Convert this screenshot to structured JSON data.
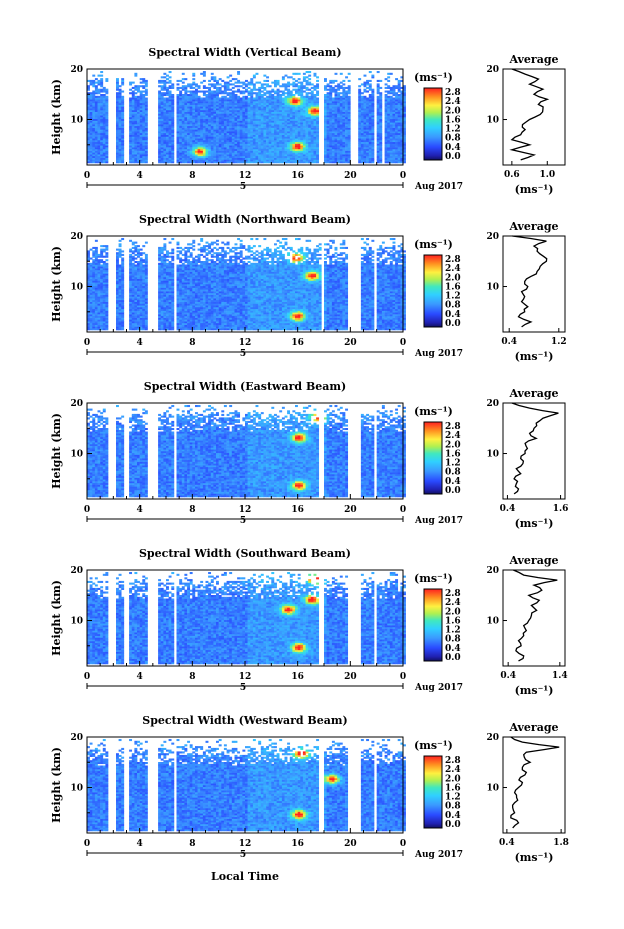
{
  "figure": {
    "xlabel": "Local Time",
    "ylabel": "Height (km)",
    "date_label": "Aug 2017",
    "day_label": "5",
    "avg_title": "Average",
    "cbar_unit": "(ms⁻¹)",
    "avg_unit": "(ms⁻¹)"
  },
  "chart_data": [
    {
      "type": "heatmap",
      "title": "Spectral Width (Vertical Beam)",
      "x_ticks": [
        "0",
        "4",
        "8",
        "12",
        "16",
        "20",
        "0"
      ],
      "y_ticks": [
        "20",
        "10"
      ],
      "xlim": [
        0,
        24
      ],
      "ylim": [
        1,
        20
      ],
      "colorbar_ticks": [
        "2.8",
        "2.4",
        "2.0",
        "1.6",
        "1.2",
        "0.8",
        "0.4",
        "0.0"
      ],
      "avg_xticks": [
        "0.6",
        "1.0"
      ],
      "avg_xlim": [
        0.5,
        1.2
      ],
      "data_gaps_hours": [
        [
          1.6,
          2.3
        ],
        [
          2.9,
          3.2
        ],
        [
          4.6,
          5.4
        ],
        [
          6.7,
          6.8
        ],
        [
          17.5,
          17.9
        ],
        [
          20.0,
          20.6
        ],
        [
          21.7,
          21.9
        ],
        [
          22.3,
          22.5
        ]
      ],
      "hotspots": [
        {
          "t": 15.9,
          "h": 4.5
        },
        {
          "t": 15.7,
          "h": 13.5
        },
        {
          "t": 17.2,
          "h": 11.5
        },
        {
          "t": 8.5,
          "h": 3.5
        }
      ],
      "avg_profile": {
        "h": [
          2,
          3,
          4,
          5,
          6,
          7,
          8,
          9,
          10,
          11,
          12,
          13,
          14,
          15,
          16,
          17,
          18,
          19,
          20
        ],
        "v": [
          0.7,
          0.85,
          0.6,
          0.8,
          0.6,
          0.7,
          0.75,
          0.72,
          0.8,
          0.92,
          0.95,
          0.9,
          1.0,
          0.85,
          0.95,
          0.8,
          0.9,
          0.75,
          0.6
        ]
      }
    },
    {
      "type": "heatmap",
      "title": "Spectral Width (Northward Beam)",
      "x_ticks": [
        "0",
        "4",
        "8",
        "12",
        "16",
        "20",
        "0"
      ],
      "y_ticks": [
        "20",
        "10"
      ],
      "xlim": [
        0,
        24
      ],
      "ylim": [
        1,
        20
      ],
      "colorbar_ticks": [
        "2.8",
        "2.4",
        "2.0",
        "1.6",
        "1.2",
        "0.8",
        "0.4",
        "0.0"
      ],
      "avg_xticks": [
        "0.4",
        "1.2"
      ],
      "avg_xlim": [
        0.3,
        1.3
      ],
      "data_gaps_hours": [
        [
          1.6,
          2.3
        ],
        [
          2.8,
          3.2
        ],
        [
          4.6,
          5.4
        ],
        [
          6.6,
          6.8
        ],
        [
          17.8,
          18.0
        ],
        [
          19.8,
          20.7
        ],
        [
          21.7,
          21.9
        ]
      ],
      "hotspots": [
        {
          "t": 15.9,
          "h": 4.0
        },
        {
          "t": 15.8,
          "h": 15.5
        },
        {
          "t": 17.0,
          "h": 12.0
        }
      ],
      "avg_profile": {
        "h": [
          2,
          3,
          4,
          5,
          6,
          7,
          8,
          9,
          10,
          11,
          12,
          13,
          14,
          15,
          16,
          17,
          18,
          19,
          20
        ],
        "v": [
          0.6,
          0.75,
          0.55,
          0.65,
          0.7,
          0.6,
          0.65,
          0.6,
          0.7,
          0.65,
          0.75,
          0.85,
          0.9,
          1.0,
          0.95,
          0.85,
          0.8,
          1.0,
          0.45
        ]
      }
    },
    {
      "type": "heatmap",
      "title": "Spectral Width (Eastward Beam)",
      "x_ticks": [
        "0",
        "4",
        "8",
        "12",
        "16",
        "20",
        "0"
      ],
      "y_ticks": [
        "20",
        "10"
      ],
      "xlim": [
        0,
        24
      ],
      "ylim": [
        1,
        20
      ],
      "colorbar_ticks": [
        "2.8",
        "2.4",
        "2.0",
        "1.6",
        "1.2",
        "0.8",
        "0.4",
        "0.0"
      ],
      "avg_xticks": [
        "0.4",
        "1.6"
      ],
      "avg_xlim": [
        0.3,
        1.7
      ],
      "data_gaps_hours": [
        [
          1.6,
          2.3
        ],
        [
          2.8,
          3.2
        ],
        [
          4.6,
          5.4
        ],
        [
          6.6,
          6.8
        ],
        [
          17.6,
          18.0
        ],
        [
          19.8,
          20.7
        ],
        [
          21.7,
          22.0
        ]
      ],
      "hotspots": [
        {
          "t": 16.0,
          "h": 3.5
        },
        {
          "t": 16.0,
          "h": 13.0
        },
        {
          "t": 17.5,
          "h": 17.0
        }
      ],
      "avg_profile": {
        "h": [
          2,
          3,
          4,
          5,
          6,
          7,
          8,
          9,
          10,
          11,
          12,
          13,
          14,
          15,
          16,
          17,
          18,
          19,
          20
        ],
        "v": [
          0.55,
          0.65,
          0.6,
          0.55,
          0.7,
          0.6,
          0.75,
          0.7,
          0.8,
          0.85,
          0.8,
          1.05,
          0.9,
          1.0,
          1.05,
          1.2,
          1.55,
          0.9,
          0.5
        ]
      }
    },
    {
      "type": "heatmap",
      "title": "Spectral Width (Southward Beam)",
      "x_ticks": [
        "0",
        "4",
        "8",
        "12",
        "16",
        "20",
        "0"
      ],
      "y_ticks": [
        "20",
        "10"
      ],
      "xlim": [
        0,
        24
      ],
      "ylim": [
        1,
        20
      ],
      "colorbar_ticks": [
        "2.8",
        "2.4",
        "2.0",
        "1.6",
        "1.2",
        "0.8",
        "0.4",
        "0.0"
      ],
      "avg_xticks": [
        "0.4",
        "1.4"
      ],
      "avg_xlim": [
        0.3,
        1.5
      ],
      "data_gaps_hours": [
        [
          1.6,
          2.3
        ],
        [
          2.8,
          3.2
        ],
        [
          4.6,
          5.4
        ],
        [
          6.6,
          6.8
        ],
        [
          17.6,
          18.0
        ],
        [
          19.8,
          20.7
        ],
        [
          21.7,
          22.0
        ]
      ],
      "hotspots": [
        {
          "t": 16.0,
          "h": 4.5
        },
        {
          "t": 15.2,
          "h": 12.0
        },
        {
          "t": 17.0,
          "h": 14.0
        },
        {
          "t": 17.2,
          "h": 18.0
        }
      ],
      "avg_profile": {
        "h": [
          2,
          3,
          4,
          5,
          6,
          7,
          8,
          9,
          10,
          11,
          12,
          13,
          14,
          15,
          16,
          17,
          18,
          19,
          20
        ],
        "v": [
          0.6,
          0.7,
          0.55,
          0.65,
          0.6,
          0.7,
          0.75,
          0.7,
          0.8,
          0.85,
          0.95,
          0.85,
          1.0,
          0.8,
          1.05,
          0.9,
          1.35,
          0.7,
          0.5
        ]
      }
    },
    {
      "type": "heatmap",
      "title": "Spectral Width (Westward Beam)",
      "x_ticks": [
        "0",
        "4",
        "8",
        "12",
        "16",
        "20",
        "0"
      ],
      "y_ticks": [
        "20",
        "10"
      ],
      "xlim": [
        0,
        24
      ],
      "ylim": [
        1,
        20
      ],
      "colorbar_ticks": [
        "2.8",
        "2.4",
        "2.0",
        "1.6",
        "1.2",
        "0.8",
        "0.4",
        "0.0"
      ],
      "avg_xticks": [
        "0.4",
        "1.8"
      ],
      "avg_xlim": [
        0.3,
        1.9
      ],
      "data_gaps_hours": [
        [
          1.6,
          2.3
        ],
        [
          2.8,
          3.2
        ],
        [
          4.6,
          5.4
        ],
        [
          6.6,
          6.8
        ],
        [
          17.6,
          18.0
        ],
        [
          19.8,
          20.7
        ],
        [
          21.7,
          22.0
        ]
      ],
      "hotspots": [
        {
          "t": 16.0,
          "h": 4.5
        },
        {
          "t": 16.2,
          "h": 16.5
        },
        {
          "t": 18.5,
          "h": 11.5
        }
      ],
      "avg_profile": {
        "h": [
          2,
          3,
          4,
          5,
          6,
          7,
          8,
          9,
          10,
          11,
          12,
          13,
          14,
          15,
          16,
          17,
          18,
          19,
          20
        ],
        "v": [
          0.55,
          0.7,
          0.5,
          0.6,
          0.55,
          0.6,
          0.65,
          0.6,
          0.7,
          0.8,
          0.75,
          0.9,
          0.8,
          1.0,
          0.85,
          0.9,
          1.75,
          0.8,
          0.5
        ]
      }
    }
  ]
}
